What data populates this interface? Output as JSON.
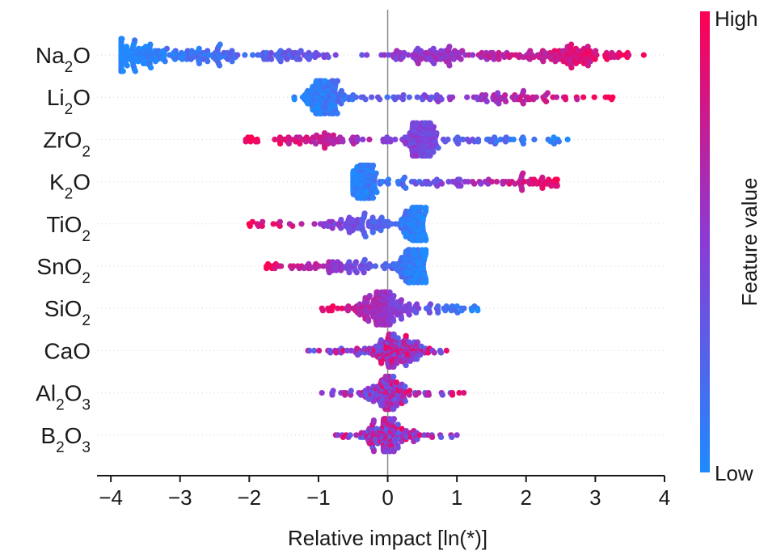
{
  "chart_data": {
    "type": "scatter",
    "subtype": "beeswarm",
    "xlabel": "Relative impact [ln(*)]",
    "xlim": [
      -4.2,
      4.0
    ],
    "xticks": [
      -4,
      -3,
      -2,
      -1,
      0,
      1,
      2,
      3,
      4
    ],
    "xtick_labels": [
      "−4",
      "−3",
      "−2",
      "−1",
      "0",
      "1",
      "2",
      "3",
      "4"
    ],
    "colorbar": {
      "title": "Feature value",
      "high_label": "High",
      "low_label": "Low",
      "low_color": "#1e8bff",
      "high_color": "#ff0052"
    },
    "features": [
      {
        "name": "Na",
        "sub1": "2",
        "mid": "O",
        "sub2": "",
        "range": [
          -3.85,
          3.7
        ],
        "clusters": [
          [
            -3.6,
            0.25,
            2
          ],
          [
            -2.7,
            0.3,
            1.3
          ],
          [
            -1.4,
            0.25,
            0.9
          ],
          [
            0.5,
            0.35,
            1.2
          ],
          [
            1.5,
            0.5,
            0.8
          ],
          [
            2.65,
            0.3,
            2
          ]
        ],
        "trend": "pos"
      },
      {
        "name": "Li",
        "sub1": "2",
        "mid": "O",
        "sub2": "",
        "range": [
          -1.35,
          3.25
        ],
        "clusters": [
          [
            -0.95,
            0.15,
            3
          ],
          [
            0.6,
            0.5,
            0.4
          ],
          [
            1.9,
            0.35,
            0.8
          ]
        ],
        "trend": "pos"
      },
      {
        "name": "ZrO",
        "sub1": "",
        "mid": "",
        "sub2": "2",
        "range": [
          -2.05,
          2.6
        ],
        "clusters": [
          [
            -1.0,
            0.5,
            1.3
          ],
          [
            0.5,
            0.12,
            2.8
          ],
          [
            1.4,
            0.3,
            0.4
          ]
        ],
        "trend": "neg"
      },
      {
        "name": "K",
        "sub1": "2",
        "mid": "O",
        "sub2": "",
        "range": [
          -0.5,
          2.45
        ],
        "clusters": [
          [
            -0.35,
            0.1,
            2.8
          ],
          [
            0.6,
            0.5,
            0.6
          ],
          [
            2.0,
            0.3,
            0.6
          ]
        ],
        "trend": "pos"
      },
      {
        "name": "TiO",
        "sub1": "",
        "mid": "",
        "sub2": "2",
        "range": [
          -2.0,
          0.55
        ],
        "clusters": [
          [
            -0.4,
            0.25,
            1.2
          ],
          [
            0.4,
            0.1,
            2.6
          ]
        ],
        "trend": "neg"
      },
      {
        "name": "SnO",
        "sub1": "",
        "mid": "",
        "sub2": "2",
        "range": [
          -1.75,
          0.55
        ],
        "clusters": [
          [
            -0.7,
            0.4,
            1
          ],
          [
            0.35,
            0.12,
            2.4
          ]
        ],
        "trend": "neg"
      },
      {
        "name": "SiO",
        "sub1": "",
        "mid": "",
        "sub2": "2",
        "range": [
          -0.95,
          1.3
        ],
        "clusters": [
          [
            -0.1,
            0.15,
            2.6
          ],
          [
            0.5,
            0.35,
            0.6
          ]
        ],
        "trend": "neg"
      },
      {
        "name": "CaO",
        "sub1": "",
        "mid": "",
        "sub2": "",
        "range": [
          -1.15,
          0.85
        ],
        "clusters": [
          [
            0.05,
            0.22,
            2.6
          ]
        ],
        "trend": "mix"
      },
      {
        "name": "Al",
        "sub1": "2",
        "mid": "O",
        "sub2": "3",
        "range": [
          -0.95,
          1.1
        ],
        "clusters": [
          [
            0.0,
            0.15,
            2.2
          ]
        ],
        "trend": "mix"
      },
      {
        "name": "B",
        "sub1": "2",
        "mid": "O",
        "sub2": "3",
        "range": [
          -0.75,
          1.0
        ],
        "clusters": [
          [
            0.0,
            0.15,
            2.4
          ]
        ],
        "trend": "mix"
      }
    ]
  }
}
